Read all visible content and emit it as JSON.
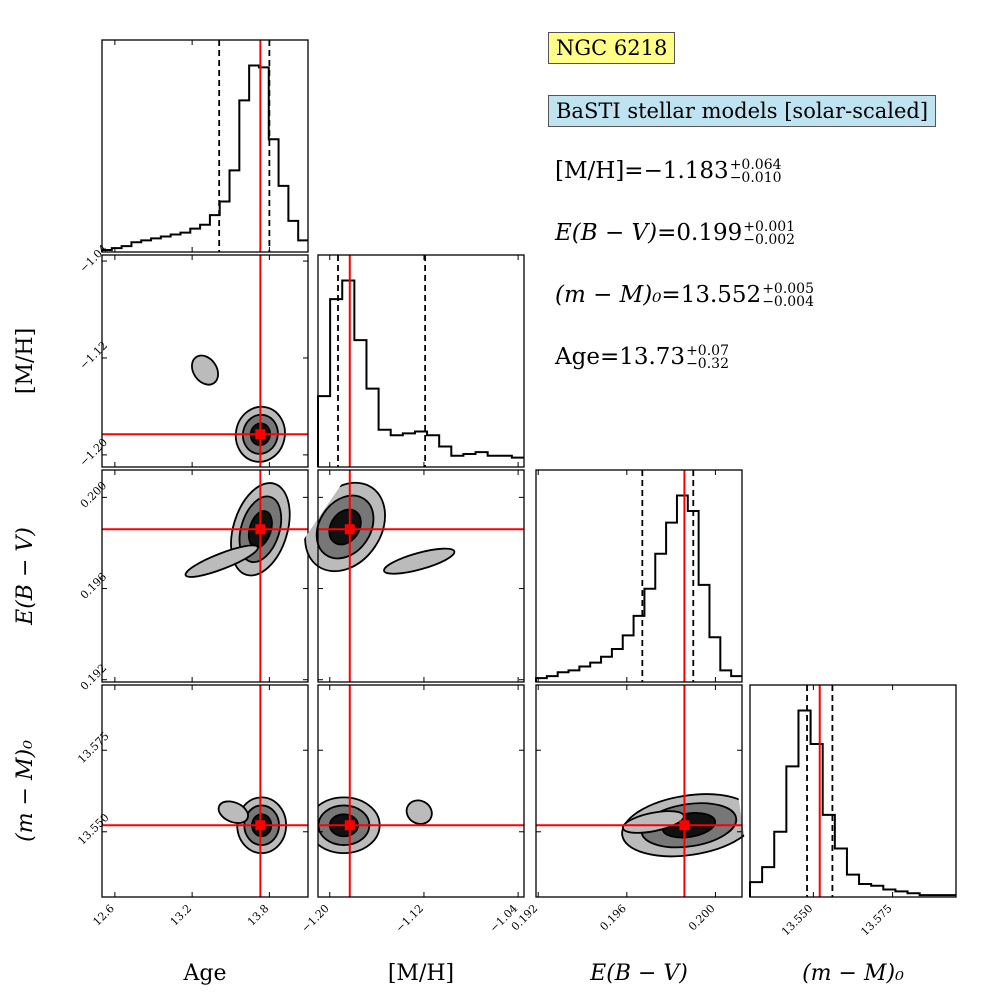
{
  "legend": {
    "cluster_name": "NGC 6218",
    "model_name": "BaSTI stellar models [solar-scaled]"
  },
  "stats": [
    {
      "name": "[M/H]=",
      "value": "−1.183",
      "plus": "+0.064",
      "minus": "−0.010"
    },
    {
      "name": "E(B − V)=",
      "value": "0.199",
      "plus": "+0.001",
      "minus": "−0.002"
    },
    {
      "name": "(m − M)₀=",
      "value": "13.552",
      "plus": "+0.005",
      "minus": "−0.004"
    },
    {
      "name": "Age=",
      "value": "13.73",
      "plus": "+0.07",
      "minus": "−0.32"
    }
  ],
  "colors": {
    "truth_line": "#ff0000",
    "contour_dark": "#111111",
    "contour_mid": "#777777",
    "contour_light": "#bbbbbb"
  },
  "chart_data": {
    "type": "corner",
    "parameters": [
      {
        "label": "Age",
        "range": [
          12.5,
          14.1
        ],
        "ticks": [
          12.6,
          13.2,
          13.8
        ],
        "tick_labels": [
          "12.6",
          "13.2",
          "13.8"
        ],
        "best": 13.73,
        "q16": 13.41,
        "q84": 13.8
      },
      {
        "label": "[M/H]",
        "range": [
          -1.21,
          -1.035
        ],
        "ticks": [
          -1.2,
          -1.12,
          -1.04
        ],
        "tick_labels": [
          "−1.20",
          "−1.12",
          "−1.04"
        ],
        "best": -1.183,
        "q16": -1.193,
        "q84": -1.119
      },
      {
        "label": "E(B − V)",
        "range": [
          0.1919,
          0.2012
        ],
        "ticks": [
          0.192,
          0.196,
          0.2
        ],
        "tick_labels": [
          "0.192",
          "0.196",
          "0.200"
        ],
        "best": 0.1986,
        "q16": 0.1967,
        "q84": 0.199
      },
      {
        "label": "(m − M)₀",
        "range": [
          13.53,
          13.595
        ],
        "ticks": [
          13.55,
          13.575
        ],
        "tick_labels": [
          "13.550",
          "13.575"
        ],
        "best": 13.552,
        "q16": 13.548,
        "q84": 13.556
      }
    ],
    "histograms": [
      {
        "bins": [
          12.5,
          14.1
        ],
        "counts": [
          1,
          2,
          3,
          5,
          6,
          7,
          8,
          9,
          10,
          12,
          14,
          19,
          26,
          42,
          78,
          96,
          95,
          58,
          34,
          16,
          6
        ]
      },
      {
        "bins": [
          -1.21,
          -1.035
        ],
        "counts": [
          38,
          90,
          100,
          68,
          42,
          20,
          17,
          18,
          19,
          17,
          11,
          6,
          7,
          8,
          6,
          6,
          5
        ]
      },
      {
        "bins": [
          0.1919,
          0.2012
        ],
        "counts": [
          2,
          3,
          5,
          6,
          8,
          10,
          13,
          17,
          24,
          34,
          48,
          66,
          82,
          96,
          88,
          50,
          23,
          6,
          3
        ]
      },
      {
        "bins": [
          13.53,
          13.595
        ],
        "counts": [
          8,
          16,
          35,
          70,
          100,
          82,
          44,
          26,
          12,
          7,
          6,
          4,
          3,
          2,
          1,
          1,
          1
        ]
      }
    ],
    "contours_2d": [
      {
        "x": "Age",
        "y": "[M/H]",
        "blobs": [
          {
            "cx": 13.73,
            "cy": -1.183,
            "sx": 0.1,
            "sy": 0.012,
            "theta": -0.2,
            "levels": 3
          },
          {
            "cx": 13.3,
            "cy": -1.13,
            "sx": 0.09,
            "sy": 0.013,
            "theta": 0.6,
            "levels": 1
          }
        ]
      },
      {
        "x": "Age",
        "y": "E(B − V)",
        "blobs": [
          {
            "cx": 13.73,
            "cy": 0.1986,
            "sx": 0.11,
            "sy": 0.0011,
            "theta": -0.3,
            "levels": 3
          },
          {
            "cx": 13.43,
            "cy": 0.1972,
            "sx": 0.06,
            "sy": 0.0017,
            "theta": -1.2,
            "levels": 1
          }
        ]
      },
      {
        "x": "Age",
        "y": "(m − M)₀",
        "blobs": [
          {
            "cx": 13.74,
            "cy": 13.552,
            "sx": 0.1,
            "sy": 0.0045,
            "theta": 0.0,
            "levels": 3
          },
          {
            "cx": 13.52,
            "cy": 13.556,
            "sx": 0.12,
            "sy": 0.003,
            "theta": -0.4,
            "levels": 1
          }
        ]
      },
      {
        "x": "[M/H]",
        "y": "E(B − V)",
        "blobs": [
          {
            "cx": -1.187,
            "cy": 0.1987,
            "sx": 0.016,
            "sy": 0.0011,
            "theta": -0.6,
            "levels": 3
          },
          {
            "cx": -1.124,
            "cy": 0.1972,
            "sx": 0.007,
            "sy": 0.0016,
            "theta": -1.3,
            "levels": 1
          }
        ]
      },
      {
        "x": "[M/H]",
        "y": "(m − M)₀",
        "blobs": [
          {
            "cx": -1.188,
            "cy": 13.552,
            "sx": 0.016,
            "sy": 0.0045,
            "theta": 0.0,
            "levels": 3
          },
          {
            "cx": -1.124,
            "cy": 13.556,
            "sx": 0.011,
            "sy": 0.0035,
            "theta": -0.5,
            "levels": 1
          }
        ]
      },
      {
        "x": "E(B − V)",
        "y": "(m − M)₀",
        "blobs": [
          {
            "cx": 0.1988,
            "cy": 13.552,
            "sx": 0.0016,
            "sy": 0.0048,
            "theta": 0.15,
            "levels": 3
          },
          {
            "cx": 0.1972,
            "cy": 13.553,
            "sx": 0.0014,
            "sy": 0.0028,
            "theta": 0.2,
            "levels": 1
          }
        ]
      }
    ],
    "xlabel": [
      "Age",
      "[M/H]",
      "E(B − V)",
      "(m − M)₀"
    ],
    "ylabel": [
      "[M/H]",
      "E(B − V)",
      "(m − M)₀"
    ],
    "grid": false
  }
}
